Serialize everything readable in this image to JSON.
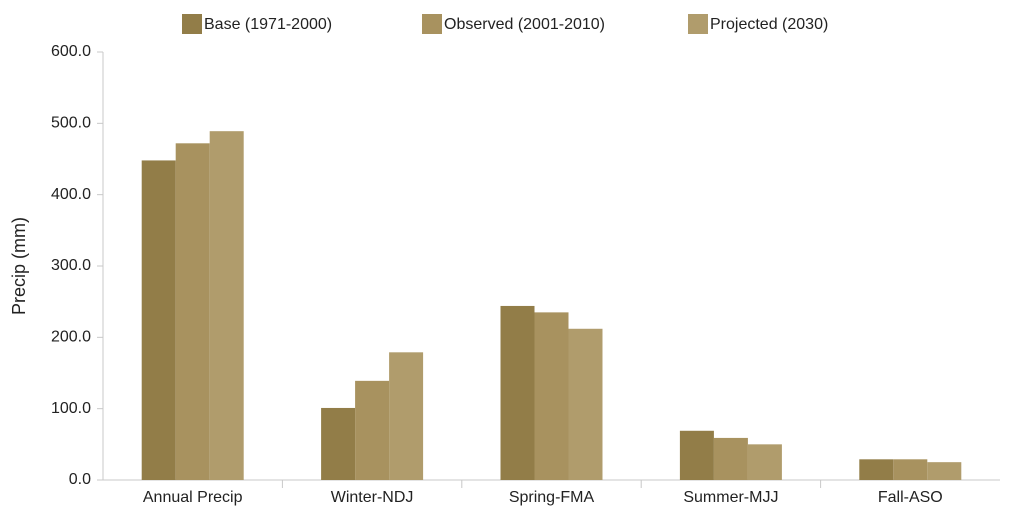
{
  "chart_data": {
    "type": "bar",
    "y_label": "Precip (mm)",
    "categories": [
      "Annual Precip",
      "Winter-NDJ",
      "Spring-FMA",
      "Summer-MJJ",
      "Fall-ASO"
    ],
    "series": [
      {
        "name": "Base (1971-2000)",
        "color": "#927d48",
        "values": [
          448,
          101,
          244,
          69,
          29
        ]
      },
      {
        "name": "Observed (2001-2010)",
        "color": "#a8925f",
        "values": [
          472,
          139,
          235,
          59,
          29
        ]
      },
      {
        "name": "Projected (2030)",
        "color": "#b09c6c",
        "values": [
          489,
          179,
          212,
          50,
          25
        ]
      }
    ],
    "ylim": [
      0,
      600
    ],
    "yticks": [
      {
        "value": 0,
        "label": "0.0"
      },
      {
        "value": 100,
        "label": "100.0"
      },
      {
        "value": 200,
        "label": "200.0"
      },
      {
        "value": 300,
        "label": "300.0"
      },
      {
        "value": 400,
        "label": "400.0"
      },
      {
        "value": 500,
        "label": "500.0"
      },
      {
        "value": 600,
        "label": "600.0"
      }
    ],
    "grid": false,
    "legend": "top"
  }
}
